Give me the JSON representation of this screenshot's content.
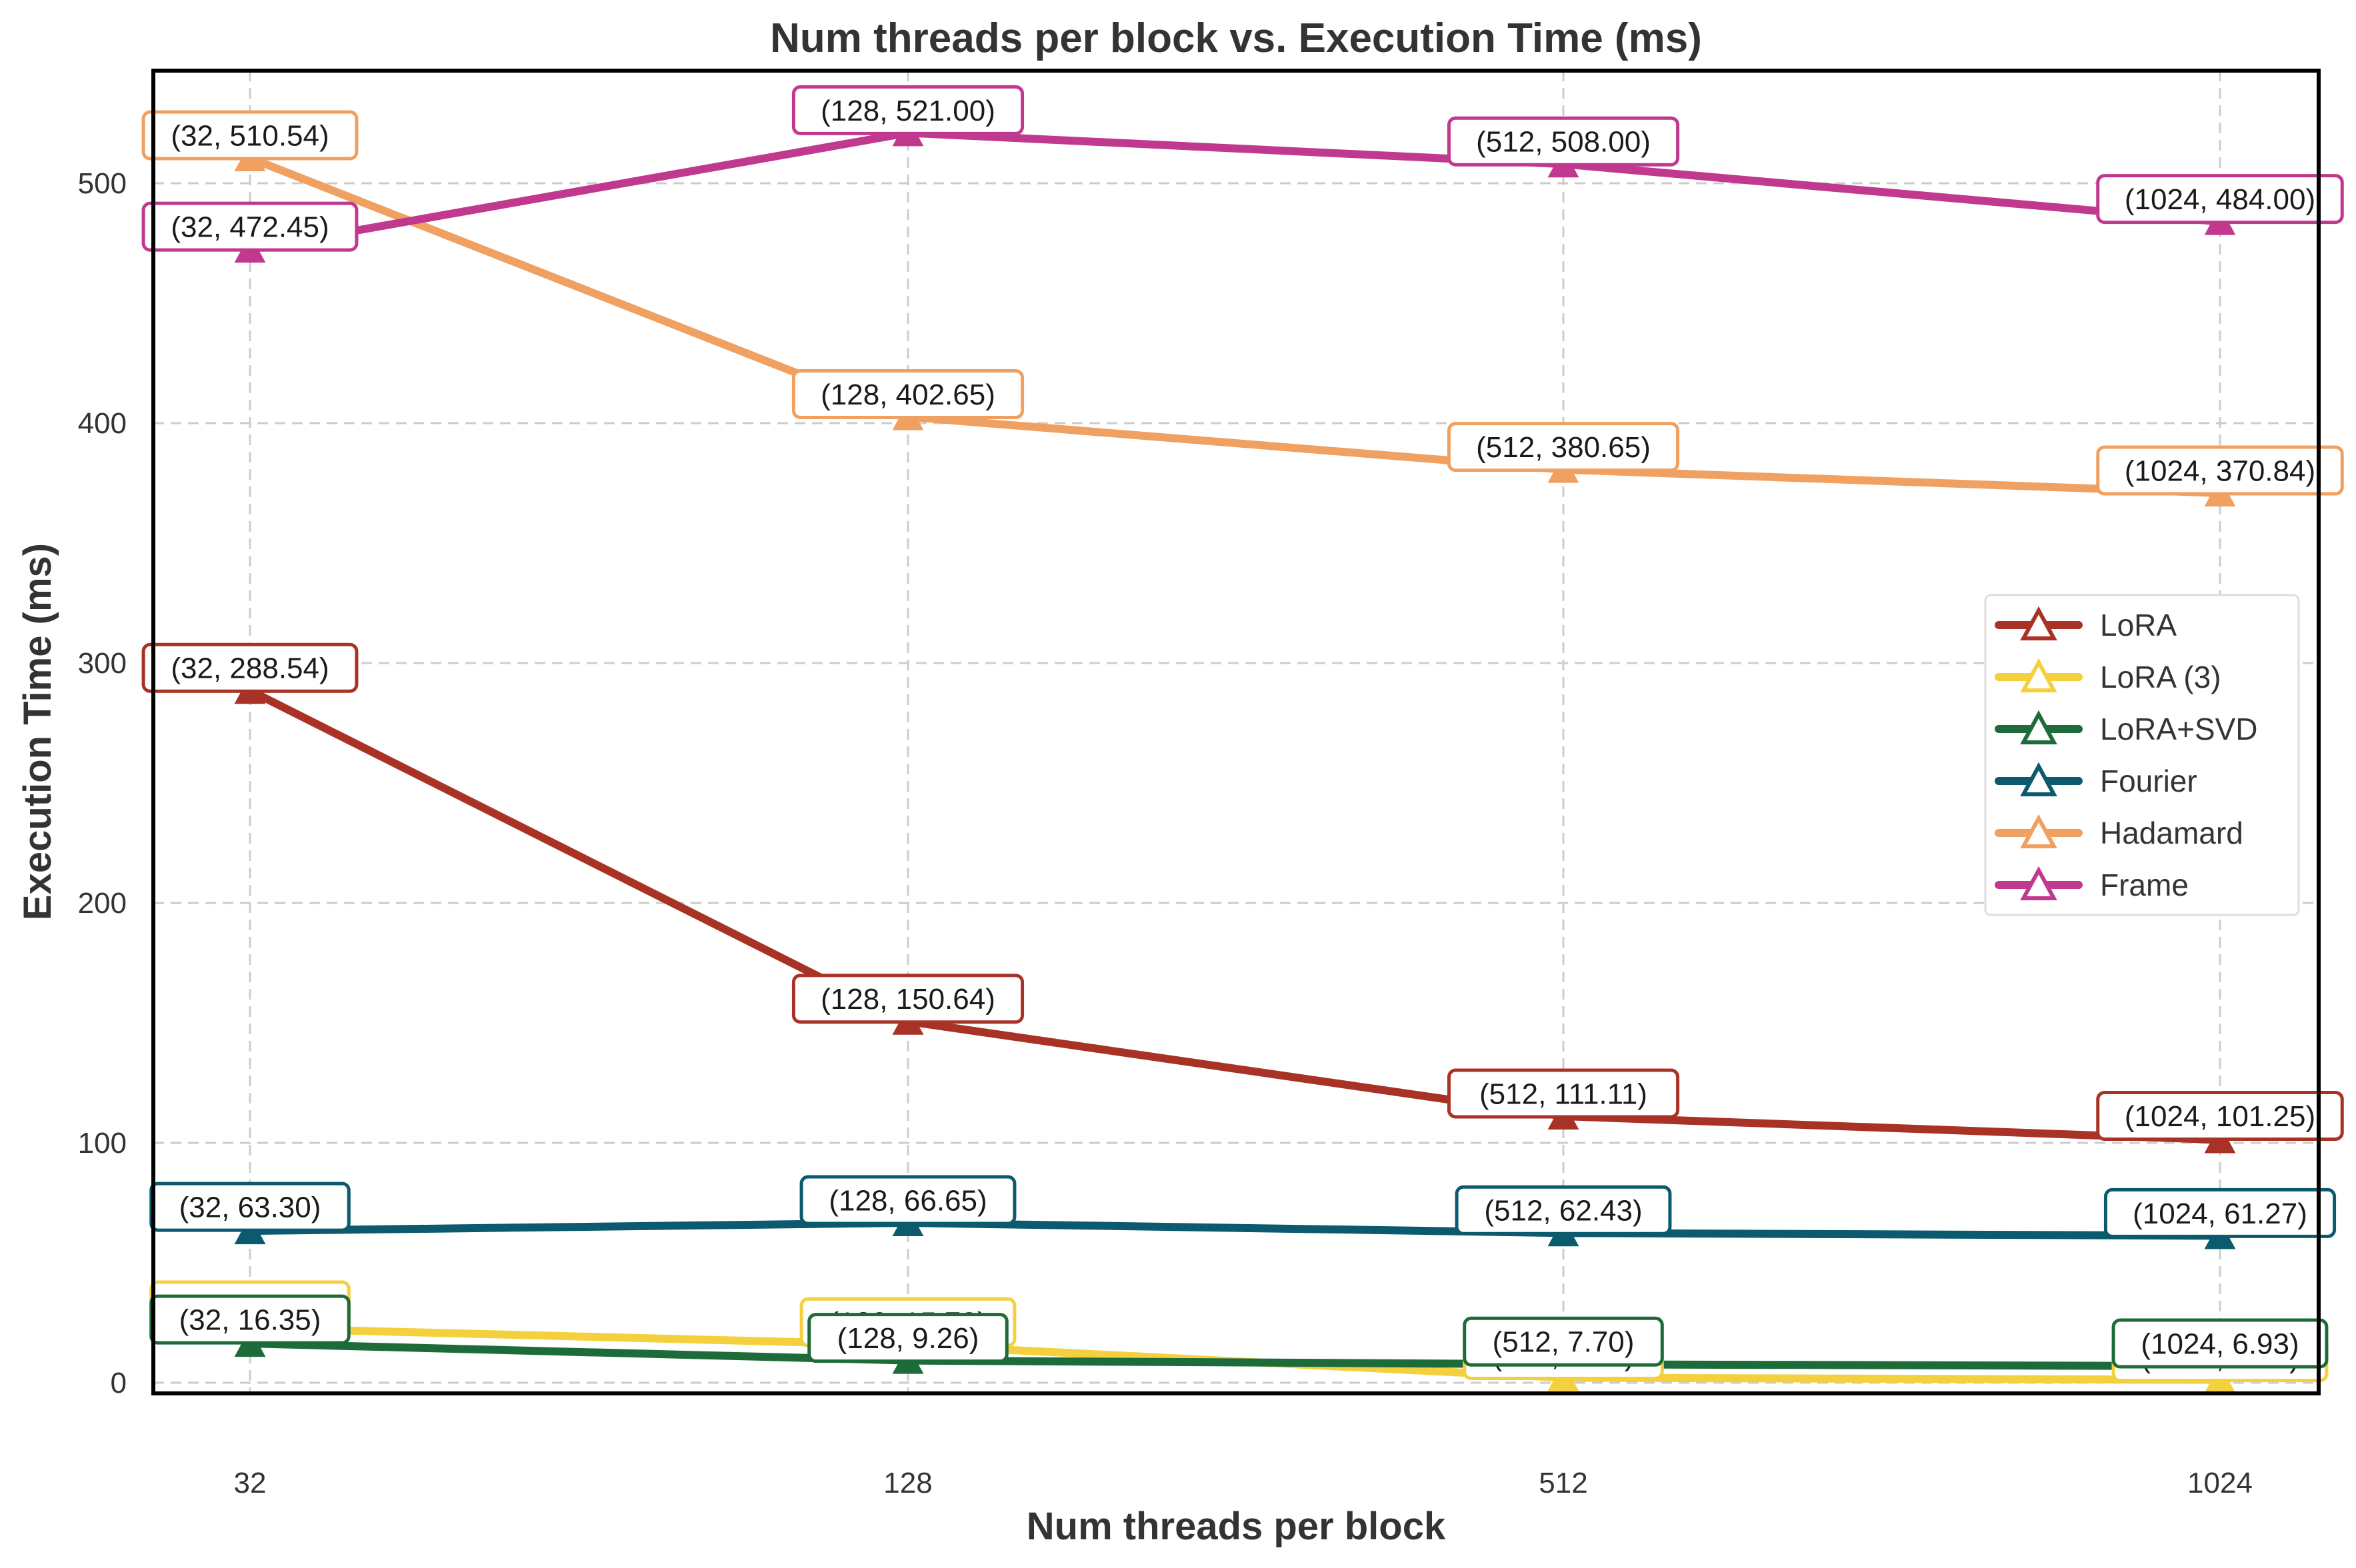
{
  "chart_data": {
    "type": "line",
    "title": "Num threads per block vs. Execution Time (ms)",
    "xlabel": "Num threads per block",
    "ylabel": "Execution Time (ms)",
    "categories": [
      "32",
      "128",
      "512",
      "1024"
    ],
    "y_ticks": [
      0,
      100,
      200,
      300,
      400,
      500
    ],
    "ylim": [
      -25,
      545
    ],
    "grid": true,
    "legend_position": "right",
    "marker": "triangle",
    "series": [
      {
        "name": "LoRA",
        "color": "#a93226",
        "values": [
          288.54,
          150.64,
          111.11,
          101.25
        ],
        "labels": [
          "(32, 288.54)",
          "(128, 150.64)",
          "(512, 111.11)",
          "(1024, 101.25)"
        ]
      },
      {
        "name": "LoRA (3)",
        "color": "#f4d03f",
        "values": [
          22.78,
          15.78,
          2.1,
          1.2
        ],
        "labels": [
          "(32, 22.78)",
          "(128, 15.78)",
          "(512, 2.10)",
          "(1024, 1.20)"
        ]
      },
      {
        "name": "LoRA+SVD",
        "color": "#1e6b3a",
        "values": [
          16.35,
          9.26,
          7.7,
          6.93
        ],
        "labels": [
          "(32, 16.35)",
          "(128, 9.26)",
          "(512, 7.70)",
          "(1024, 6.93)"
        ]
      },
      {
        "name": "Fourier",
        "color": "#0b5a6e",
        "values": [
          63.3,
          66.65,
          62.43,
          61.27
        ],
        "labels": [
          "(32, 63.30)",
          "(128, 66.65)",
          "(512, 62.43)",
          "(1024, 61.27)"
        ]
      },
      {
        "name": "Hadamard",
        "color": "#f0a060",
        "values": [
          510.54,
          402.65,
          380.65,
          370.84
        ],
        "labels": [
          "(32, 510.54)",
          "(128, 402.65)",
          "(512, 380.65)",
          "(1024, 370.84)"
        ]
      },
      {
        "name": "Frame",
        "color": "#c0398e",
        "values": [
          472.45,
          521.0,
          508.0,
          484.0
        ],
        "labels": [
          "(32, 472.45)",
          "(128, 521.00)",
          "(512, 508.00)",
          "(1024, 484.00)"
        ]
      }
    ]
  }
}
